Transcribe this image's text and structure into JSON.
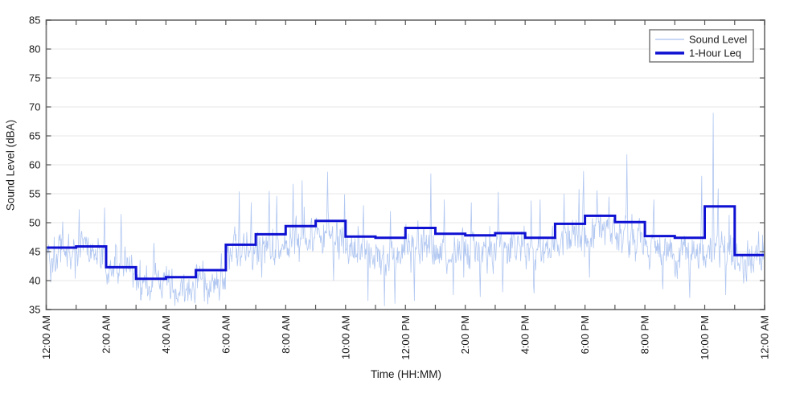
{
  "figure": {
    "background": "#ffffff",
    "frame_color": "#7a7a7a",
    "tick_color": "#555555",
    "grid_color": "#e7e7e7",
    "text_color": "#1a1a1a"
  },
  "chart_data": {
    "type": "line",
    "title": "",
    "xlabel": "Time (HH:MM)",
    "ylabel": "Sound Level (dBA)",
    "ylim": [
      35,
      85
    ],
    "xlim_hours": [
      0,
      24
    ],
    "grid": "horizontal-only",
    "y_ticks": [
      35,
      40,
      45,
      50,
      55,
      60,
      65,
      70,
      75,
      80,
      85
    ],
    "x_major_tick_hours": [
      0,
      2,
      4,
      6,
      8,
      10,
      12,
      14,
      16,
      18,
      20,
      22,
      24
    ],
    "x_major_tick_labels": [
      "12:00 AM",
      "2:00 AM",
      "4:00 AM",
      "6:00 AM",
      "8:00 AM",
      "10:00 AM",
      "12:00 PM",
      "2:00 PM",
      "4:00 PM",
      "6:00 PM",
      "8:00 PM",
      "10:00 PM",
      "12:00 AM"
    ],
    "x_minor_tick_interval_hours": 1,
    "legend": {
      "position": "top-right",
      "entries": [
        {
          "label": "Sound Level",
          "color": "#a9c1ef",
          "line_width": 1.2
        },
        {
          "label": "1-Hour Leq",
          "color": "#0e10d2",
          "line_width": 3.4
        }
      ]
    },
    "series": [
      {
        "name": "Sound Level",
        "render": "noisy-line",
        "color": "#a9c1ef",
        "opacity": 0.9,
        "samples_per_hour": 60,
        "seed": 1337,
        "noise_std_dba": 1.6,
        "hourly_band_center_dba": [
          45.0,
          45.2,
          42.0,
          39.8,
          38.6,
          40.6,
          44.8,
          46.3,
          47.3,
          47.8,
          45.3,
          44.2,
          46.2,
          45.9,
          45.4,
          45.9,
          45.4,
          47.2,
          48.8,
          47.4,
          45.4,
          44.4,
          45.6,
          44.0
        ],
        "spike_events": [
          [
            0.55,
            50.2
          ],
          [
            1.1,
            52.3
          ],
          [
            1.95,
            52.6
          ],
          [
            2.5,
            51.5
          ],
          [
            3.6,
            46.5
          ],
          [
            6.45,
            55.4
          ],
          [
            6.85,
            53.5
          ],
          [
            7.45,
            55.5
          ],
          [
            7.7,
            54.6
          ],
          [
            8.25,
            56.7
          ],
          [
            8.55,
            57.3
          ],
          [
            9.4,
            58.8
          ],
          [
            9.97,
            54.9
          ],
          [
            10.6,
            53.0
          ],
          [
            11.5,
            52.0
          ],
          [
            12.85,
            58.5
          ],
          [
            13.3,
            54.0
          ],
          [
            14.2,
            53.5
          ],
          [
            15.1,
            55.3
          ],
          [
            16.5,
            54.0
          ],
          [
            17.3,
            55.0
          ],
          [
            17.8,
            55.8
          ],
          [
            17.95,
            58.9
          ],
          [
            18.4,
            55.6
          ],
          [
            18.8,
            54.5
          ],
          [
            19.4,
            61.8
          ],
          [
            20.3,
            54.0
          ],
          [
            21.9,
            58.1
          ],
          [
            22.28,
            69.0
          ],
          [
            22.45,
            55.9
          ],
          [
            23.8,
            48.5
          ]
        ],
        "dip_events": [
          [
            0.15,
            39.7
          ],
          [
            2.9,
            38.8
          ],
          [
            4.15,
            36.8
          ],
          [
            4.4,
            36.2
          ],
          [
            4.85,
            36.5
          ],
          [
            5.5,
            38.0
          ],
          [
            7.2,
            40.5
          ],
          [
            9.6,
            40.0
          ],
          [
            10.75,
            36.5
          ],
          [
            11.3,
            35.6
          ],
          [
            11.65,
            36.0
          ],
          [
            12.3,
            36.5
          ],
          [
            13.6,
            37.5
          ],
          [
            14.5,
            37.2
          ],
          [
            15.25,
            38.0
          ],
          [
            16.3,
            37.8
          ],
          [
            18.15,
            40.5
          ],
          [
            20.6,
            38.5
          ],
          [
            21.5,
            37.0
          ],
          [
            22.7,
            37.5
          ],
          [
            23.3,
            39.5
          ]
        ]
      },
      {
        "name": "1-Hour Leq",
        "render": "step-line",
        "color": "#0e10d2",
        "line_width": 3,
        "hourly_leq_dba": [
          45.7,
          45.9,
          42.3,
          40.3,
          40.6,
          41.8,
          46.2,
          48.0,
          49.4,
          50.3,
          47.6,
          47.4,
          49.1,
          48.1,
          47.8,
          48.2,
          47.4,
          49.8,
          51.2,
          50.1,
          47.7,
          47.4,
          52.8,
          44.4
        ]
      }
    ]
  }
}
